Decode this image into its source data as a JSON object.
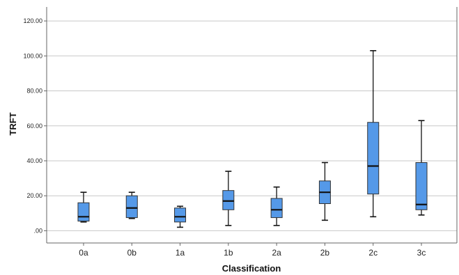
{
  "chart_data": {
    "type": "boxplot",
    "xlabel": "Classification",
    "ylabel": "TRFT",
    "ylim": [
      -7,
      128
    ],
    "y_ticks": [
      0,
      20,
      40,
      60,
      80,
      100,
      120
    ],
    "y_tick_labels": [
      ".00",
      "20.00",
      "40.00",
      "60.00",
      "80.00",
      "100.00",
      "120.00"
    ],
    "grid": "horizontal",
    "box_color": "#5599e8",
    "categories": [
      "0a",
      "0b",
      "1a",
      "1b",
      "2a",
      "2b",
      "2c",
      "3c"
    ],
    "boxes": [
      {
        "category": "0a",
        "min": 5,
        "q1": 5.5,
        "median": 8,
        "q3": 16,
        "max": 22
      },
      {
        "category": "0b",
        "min": 7,
        "q1": 7.5,
        "median": 13,
        "q3": 20,
        "max": 22
      },
      {
        "category": "1a",
        "min": 2,
        "q1": 5,
        "median": 8,
        "q3": 13,
        "max": 14
      },
      {
        "category": "1b",
        "min": 3,
        "q1": 12,
        "median": 17,
        "q3": 23,
        "max": 34
      },
      {
        "category": "2a",
        "min": 3,
        "q1": 7.5,
        "median": 12,
        "q3": 18.5,
        "max": 25
      },
      {
        "category": "2b",
        "min": 6,
        "q1": 15.5,
        "median": 22,
        "q3": 28.5,
        "max": 39
      },
      {
        "category": "2c",
        "min": 8,
        "q1": 21,
        "median": 37,
        "q3": 62,
        "max": 103
      },
      {
        "category": "3c",
        "min": 9,
        "q1": 12,
        "median": 15,
        "q3": 39,
        "max": 63
      }
    ]
  }
}
